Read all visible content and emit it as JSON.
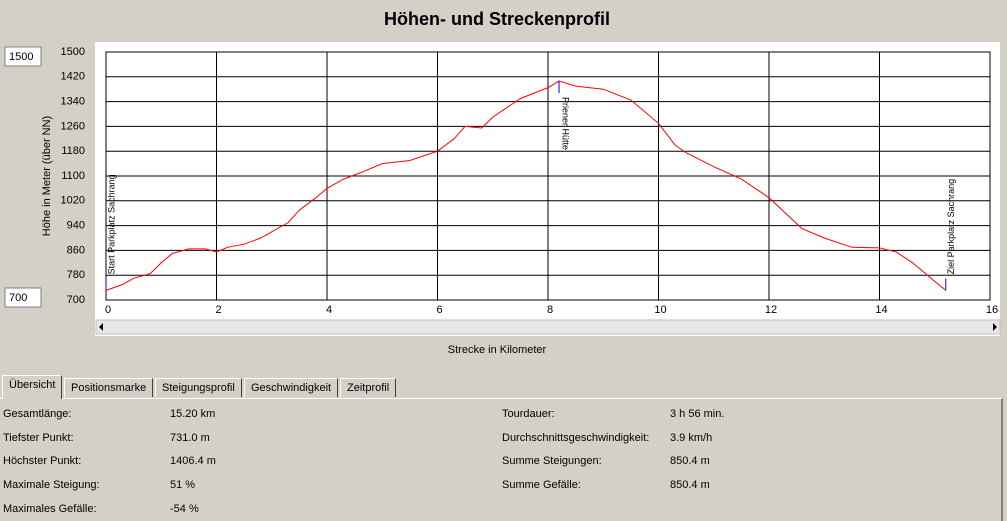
{
  "chart_data": {
    "type": "line",
    "title": "Höhen- und Streckenprofil",
    "x_label": "Strecke in Kilometer",
    "y_label": "Höhe in Meter (über NN)",
    "x": [
      0,
      0.3,
      0.5,
      0.8,
      1.0,
      1.2,
      1.5,
      1.8,
      2.0,
      2.2,
      2.5,
      2.8,
      3.0,
      3.3,
      3.5,
      3.8,
      4.0,
      4.3,
      4.6,
      5.0,
      5.5,
      6.0,
      6.3,
      6.5,
      6.8,
      7.0,
      7.5,
      8.0,
      8.2,
      8.5,
      9.0,
      9.5,
      10.0,
      10.3,
      10.5,
      11.0,
      11.5,
      12.0,
      12.3,
      12.6,
      13.0,
      13.5,
      14.0,
      14.3,
      14.6,
      15.0,
      15.2
    ],
    "series": [
      {
        "color": "#ff0000",
        "values": [
          731,
          750,
          770,
          785,
          820,
          850,
          865,
          865,
          855,
          870,
          880,
          900,
          920,
          950,
          990,
          1030,
          1060,
          1090,
          1110,
          1140,
          1150,
          1180,
          1220,
          1260,
          1255,
          1290,
          1350,
          1385,
          1406.4,
          1390,
          1380,
          1345,
          1270,
          1200,
          1175,
          1130,
          1090,
          1030,
          980,
          930,
          900,
          870,
          868,
          855,
          820,
          760,
          731
        ]
      }
    ],
    "annotations": [
      {
        "x": 0,
        "label": "Start Parkplatz Sachrang"
      },
      {
        "x": 8.2,
        "label": "Priener Hütte"
      },
      {
        "x": 15.2,
        "label": "Ziel Parkplatz Sachrang"
      }
    ],
    "xlim": [
      0,
      16
    ],
    "xticks": [
      0,
      2,
      4,
      6,
      8,
      10,
      12,
      14,
      16
    ],
    "ylim": [
      700,
      1500
    ],
    "yticks": [
      700,
      780,
      860,
      940,
      1020,
      1100,
      1180,
      1260,
      1340,
      1420,
      1500
    ],
    "grid": true
  },
  "tabs": [
    "Übersicht",
    "Positionsmarke",
    "Steigungsprofil",
    "Geschwindigkeit",
    "Zeitprofil"
  ],
  "summary": {
    "left": [
      [
        "Gesamtlänge:",
        "15.20 km"
      ],
      [
        "Tiefster Punkt:",
        "731.0 m"
      ],
      [
        "Höchster Punkt:",
        "1406.4 m"
      ],
      [
        "Maximale Steigung:",
        "51 %"
      ],
      [
        "Maximales Gefälle:",
        "-54 %"
      ]
    ],
    "right": [
      [
        "Tourdauer:",
        "3 h 56 min."
      ],
      [
        "Durchschnittsgeschwindigkeit:",
        "3.9 km/h"
      ],
      [
        "Summe Steigungen:",
        "850.4 m"
      ],
      [
        "Summe Gefälle:",
        "850.4 m"
      ]
    ]
  }
}
